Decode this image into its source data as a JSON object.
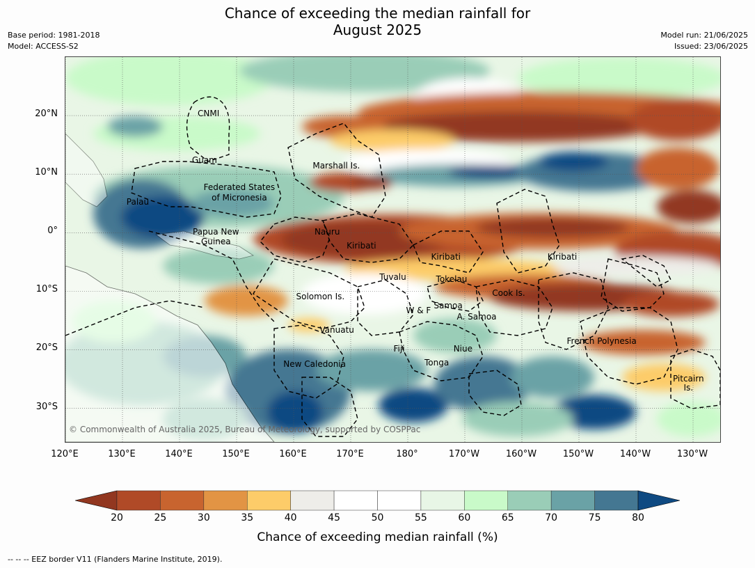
{
  "title_line1": "Chance of exceeding the median rainfall for",
  "title_line2": "August 2025",
  "base_period": "Base period: 1981-2018",
  "model": "Model: ACCESS-S2",
  "model_run": "Model run: 21/06/2025",
  "issued": "Issued: 23/06/2025",
  "map": {
    "lon_range": [
      120,
      235
    ],
    "lat_range": [
      -36,
      30
    ],
    "lat_ticks": [
      {
        "lat": 20,
        "label": "20°N"
      },
      {
        "lat": 10,
        "label": "10°N"
      },
      {
        "lat": 0,
        "label": "0°"
      },
      {
        "lat": -10,
        "label": "10°S"
      },
      {
        "lat": -20,
        "label": "20°S"
      },
      {
        "lat": -30,
        "label": "30°S"
      }
    ],
    "lon_ticks": [
      {
        "lon": 120,
        "label": "120°E"
      },
      {
        "lon": 130,
        "label": "130°E"
      },
      {
        "lon": 140,
        "label": "140°E"
      },
      {
        "lon": 150,
        "label": "150°E"
      },
      {
        "lon": 160,
        "label": "160°E"
      },
      {
        "lon": 170,
        "label": "170°E"
      },
      {
        "lon": 180,
        "label": "180°"
      },
      {
        "lon": 190,
        "label": "170°W"
      },
      {
        "lon": 200,
        "label": "160°W"
      },
      {
        "lon": 210,
        "label": "150°W"
      },
      {
        "lon": 220,
        "label": "140°W"
      },
      {
        "lon": 230,
        "label": "130°W"
      }
    ],
    "places": [
      {
        "name": "CNMI",
        "lon": 145.2,
        "lat": 20.2
      },
      {
        "name": "Guam",
        "lon": 144.5,
        "lat": 12.3
      },
      {
        "name": "Marshall Is.",
        "lon": 167.6,
        "lat": 11.3
      },
      {
        "name": "Federated States",
        "lon": 150.6,
        "lat": 7.6
      },
      {
        "name": "of Micronesia",
        "lon": 150.6,
        "lat": 5.9
      },
      {
        "name": "Palau",
        "lon": 132.8,
        "lat": 5.2
      },
      {
        "name": "Papua New",
        "lon": 146.5,
        "lat": 0.0
      },
      {
        "name": "Guinea",
        "lon": 146.5,
        "lat": -1.6
      },
      {
        "name": "Nauru",
        "lon": 166.0,
        "lat": 0.0
      },
      {
        "name": "Kiribati",
        "lon": 172.0,
        "lat": -2.3
      },
      {
        "name": "Kiribati",
        "lon": 186.8,
        "lat": -4.2
      },
      {
        "name": "Kiribati",
        "lon": 207.2,
        "lat": -4.2
      },
      {
        "name": "Tuvalu",
        "lon": 177.5,
        "lat": -7.7
      },
      {
        "name": "Tokelau",
        "lon": 187.8,
        "lat": -8.0
      },
      {
        "name": "Cook Is.",
        "lon": 197.8,
        "lat": -10.4
      },
      {
        "name": "Solomon Is.",
        "lon": 164.8,
        "lat": -11.0
      },
      {
        "name": "W & F",
        "lon": 182.0,
        "lat": -13.4
      },
      {
        "name": "Samoa",
        "lon": 187.2,
        "lat": -12.6
      },
      {
        "name": "A. Samoa",
        "lon": 192.2,
        "lat": -14.5
      },
      {
        "name": "Vanuatu",
        "lon": 167.7,
        "lat": -16.7
      },
      {
        "name": "French Polynesia",
        "lon": 214.1,
        "lat": -18.6
      },
      {
        "name": "Fiji",
        "lon": 178.6,
        "lat": -19.9
      },
      {
        "name": "Niue",
        "lon": 189.8,
        "lat": -19.9
      },
      {
        "name": "Tonga",
        "lon": 185.2,
        "lat": -22.3
      },
      {
        "name": "New Caledonia",
        "lon": 163.8,
        "lat": -22.6
      },
      {
        "name": "Pitcairn",
        "lon": 229.3,
        "lat": -25.1
      },
      {
        "name": "Is.",
        "lon": 229.3,
        "lat": -26.6
      }
    ],
    "copyright": "© Commonwealth of Australia 2025, Bureau of Meteorology, supported by COSPPac"
  },
  "colorbar": {
    "levels": [
      20,
      25,
      30,
      35,
      40,
      45,
      50,
      55,
      60,
      65,
      70,
      75,
      80
    ],
    "labels": [
      "20",
      "25",
      "30",
      "35",
      "40",
      "45",
      "50",
      "55",
      "60",
      "65",
      "70",
      "75",
      "80"
    ],
    "under_color": "#923720",
    "over_color": "#0f4a82",
    "colors": [
      "#b04a27",
      "#c8642f",
      "#e29444",
      "#fdcc69",
      "#eeede9",
      "#ffffff",
      "#ffffff",
      "#e8f6e6",
      "#c9fac9",
      "#9acdb7",
      "#6aa2a6",
      "#447792"
    ],
    "title": "Chance of exceeding median rainfall (%)"
  },
  "footer": "--  --  -- EEZ border V11 (Flanders Marine Institute, 2019)."
}
